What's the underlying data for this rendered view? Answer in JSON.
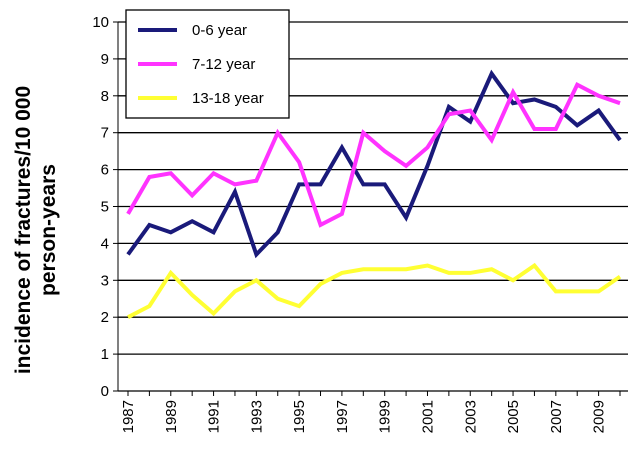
{
  "chart_data": {
    "type": "line",
    "title": "",
    "xlabel": "",
    "ylabel": [
      "incidence of fractures/10 000",
      "person-years"
    ],
    "ylim": [
      0,
      10
    ],
    "yticks": [
      0,
      1,
      2,
      3,
      4,
      5,
      6,
      7,
      8,
      9,
      10
    ],
    "x": [
      1987,
      1988,
      1989,
      1990,
      1991,
      1992,
      1993,
      1994,
      1995,
      1996,
      1997,
      1998,
      1999,
      2000,
      2001,
      2002,
      2003,
      2004,
      2005,
      2006,
      2007,
      2008,
      2009,
      2010
    ],
    "xtick_labels": [
      "1987",
      "1989",
      "1991",
      "1993",
      "1995",
      "1997",
      "1999",
      "2001",
      "2003",
      "2005",
      "2007",
      "2009"
    ],
    "grid": "horizontal",
    "legend_position": "top-left",
    "series": [
      {
        "name": "0-6 year",
        "color": "#1a1a7a",
        "values": [
          3.7,
          4.5,
          4.3,
          4.6,
          4.3,
          5.4,
          3.7,
          4.3,
          5.6,
          5.6,
          6.6,
          5.6,
          5.6,
          4.7,
          6.1,
          7.7,
          7.3,
          8.6,
          7.8,
          7.9,
          7.7,
          7.2,
          7.6,
          6.8
        ]
      },
      {
        "name": "7-12 year",
        "color": "#ff33ff",
        "values": [
          4.8,
          5.8,
          5.9,
          5.3,
          5.9,
          5.6,
          5.7,
          7.0,
          6.2,
          4.5,
          4.8,
          7.0,
          6.5,
          6.1,
          6.6,
          7.5,
          7.6,
          6.8,
          8.1,
          7.1,
          7.1,
          8.3,
          8.0,
          7.8
        ]
      },
      {
        "name": "13-18 year",
        "color": "#ffff33",
        "values": [
          2.0,
          2.3,
          3.2,
          2.6,
          2.1,
          2.7,
          3.0,
          2.5,
          2.3,
          2.9,
          3.2,
          3.3,
          3.3,
          3.3,
          3.4,
          3.2,
          3.2,
          3.3,
          3.0,
          3.4,
          2.7,
          2.7,
          2.7,
          3.1
        ]
      }
    ]
  }
}
